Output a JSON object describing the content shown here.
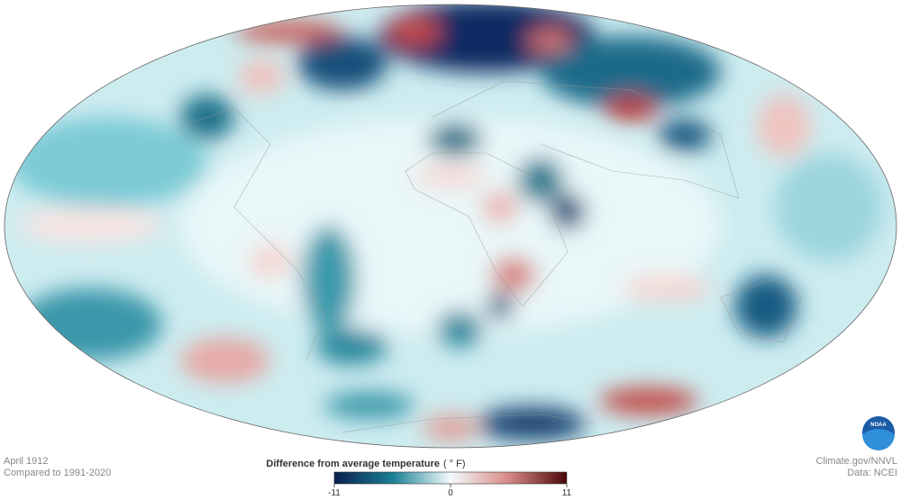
{
  "header": {
    "period": "April 1912",
    "baseline": "Compared to 1991-2020"
  },
  "legend": {
    "title": "Difference from average temperature",
    "unit": "( ° F)",
    "range": [
      -11,
      11
    ],
    "ticks": [
      -11,
      0,
      11
    ]
  },
  "credits": {
    "source": "Climate.gov/NNVL",
    "data": "Data: NCEI",
    "logo": "NOAA"
  }
}
